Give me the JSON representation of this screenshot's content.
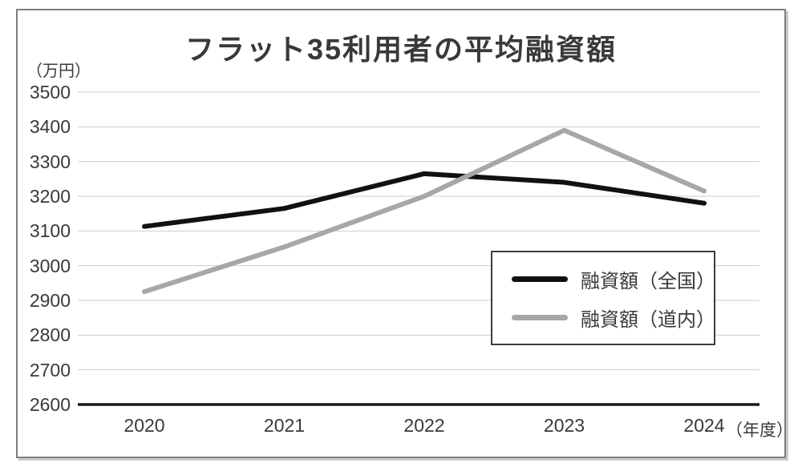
{
  "chart_data": {
    "type": "line",
    "title": "フラット35利用者の平均融資額",
    "unit_label": "（万円）",
    "x_axis_suffix": "（年度）",
    "categories": [
      "2020",
      "2021",
      "2022",
      "2023",
      "2024"
    ],
    "series": [
      {
        "name": "融資額（全国）",
        "color": "#111111",
        "values": [
          3113,
          3165,
          3265,
          3240,
          3180
        ]
      },
      {
        "name": "融資額（道内）",
        "color": "#a7a7a7",
        "values": [
          2925,
          3054,
          3200,
          3390,
          3215
        ]
      }
    ],
    "y_ticks": [
      3500,
      3400,
      3300,
      3200,
      3100,
      3000,
      2900,
      2800,
      2700,
      2600
    ],
    "ylim": [
      2600,
      3500
    ],
    "grid": true,
    "legend_position": "inside-lower-right",
    "colors": {
      "grid": "#cdcdcd",
      "axis": "#1a1a1a",
      "text": "#3b3838",
      "frame_border": "#7e7e7e",
      "legend_border": "#403d3c"
    }
  }
}
